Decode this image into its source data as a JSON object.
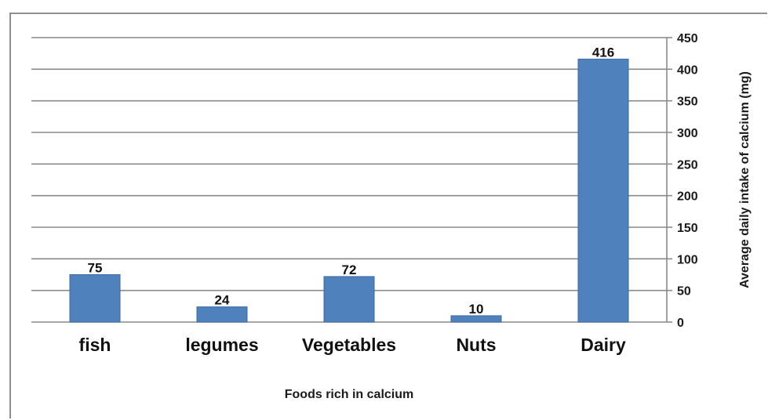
{
  "chart_data": {
    "type": "bar",
    "categories": [
      "fish",
      "legumes",
      "Vegetables",
      "Nuts",
      "Dairy"
    ],
    "values": [
      75,
      24,
      72,
      10,
      416
    ],
    "data_labels": [
      "75",
      "24",
      "72",
      "10",
      "416"
    ],
    "title": "",
    "xlabel": "Foods rich in calcium",
    "ylabel": "Average daily intake of calcium  (mg)",
    "ylim": [
      0,
      450
    ],
    "yticks": [
      0,
      50,
      100,
      150,
      200,
      250,
      300,
      350,
      400,
      450
    ],
    "ytick_labels": [
      "0",
      "50",
      "100",
      "150",
      "200",
      "250",
      "300",
      "350",
      "400",
      "450"
    ],
    "y_axis_side": "right",
    "grid": true,
    "legend": "none",
    "bar_color": "#4f81bd",
    "bar_edge_color": "#3a6aa3"
  }
}
